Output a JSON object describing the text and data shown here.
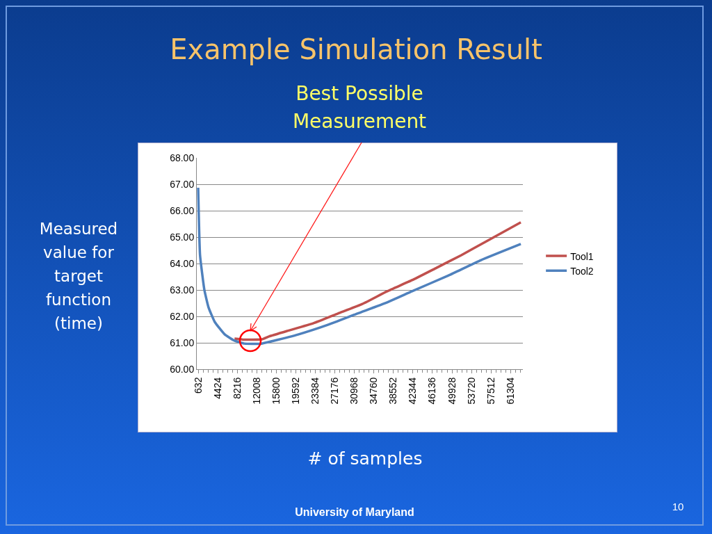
{
  "chart_data": {
    "type": "line",
    "title": "Example Simulation Result",
    "xlabel": "# of samples",
    "ylabel": "Measured value for target function (time)",
    "annotations": [
      "Best Possible\nMeasurement",
      "University of Maryland",
      "10"
    ],
    "series": [
      {
        "name": "Tool1",
        "color": "#c0504d",
        "x": [
          7694,
          9610,
          12960,
          14394,
          17946,
          23010,
          27794,
          32524,
          37348,
          42172,
          46942,
          51686,
          56510,
          63300
        ],
        "values": [
          61.16,
          61.12,
          61.13,
          61.24,
          61.45,
          61.74,
          62.11,
          62.47,
          62.95,
          63.37,
          63.84,
          64.31,
          64.83,
          65.56
        ]
      },
      {
        "name": "Tool2",
        "color": "#4f81bd",
        "x": [
          632,
          994,
          1838,
          2642,
          3848,
          5778,
          7694,
          9610,
          12960,
          15372,
          20142,
          25824,
          31586,
          37348,
          42172,
          49274,
          55572,
          63300
        ],
        "values": [
          66.87,
          64.32,
          63.0,
          62.34,
          61.79,
          61.32,
          61.08,
          60.97,
          60.97,
          61.08,
          61.32,
          61.68,
          62.11,
          62.53,
          62.95,
          63.55,
          64.13,
          64.74
        ]
      }
    ],
    "xlim": [
      360,
      63700
    ],
    "xticks": [
      632,
      4424,
      8216,
      12008,
      15800,
      19592,
      23384,
      27176,
      30968,
      34760,
      38552,
      42344,
      46136,
      49928,
      53720,
      57512,
      61304
    ],
    "ylim": [
      60,
      68
    ],
    "yticks": [
      {
        "value": 60,
        "label": "60.00"
      },
      {
        "value": 61,
        "label": "61.00"
      },
      {
        "value": 62,
        "label": "62.00"
      },
      {
        "value": 63,
        "label": "63.00"
      },
      {
        "value": 64,
        "label": "64.00"
      },
      {
        "value": 65,
        "label": "65.00"
      },
      {
        "value": 66,
        "label": "66.00"
      },
      {
        "value": 67,
        "label": "67.00"
      },
      {
        "value": 68,
        "label": "68.00"
      }
    ],
    "grid": "y",
    "legend": "right",
    "marker": "none",
    "line_style": "solid"
  }
}
